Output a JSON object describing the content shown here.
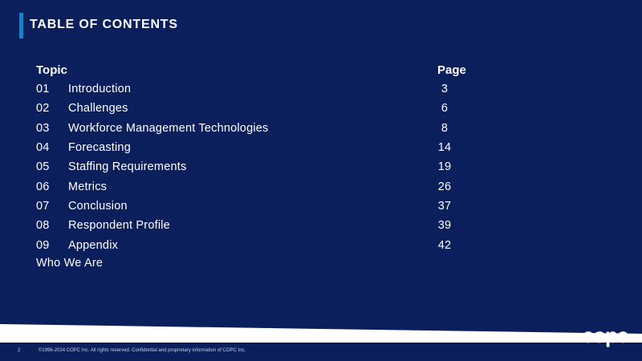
{
  "header": {
    "title": "TABLE OF CONTENTS"
  },
  "toc": {
    "topic_heading": "Topic",
    "page_heading": "Page",
    "items": [
      {
        "num": "01",
        "label": "Introduction",
        "page": "3"
      },
      {
        "num": "02",
        "label": "Challenges",
        "page": "6"
      },
      {
        "num": "03",
        "label": "Workforce Management Technologies",
        "page": "8"
      },
      {
        "num": "04",
        "label": "Forecasting",
        "page": "14"
      },
      {
        "num": "05",
        "label": "Staffing Requirements",
        "page": "19"
      },
      {
        "num": "06",
        "label": "Metrics",
        "page": "26"
      },
      {
        "num": "07",
        "label": "Conclusion",
        "page": "37"
      },
      {
        "num": "08",
        "label": "Respondent Profile",
        "page": "39"
      },
      {
        "num": "09",
        "label": "Appendix",
        "page": "42"
      }
    ],
    "extra": "Who We Are"
  },
  "footer": {
    "slide_number": "2",
    "copyright": "©1996-2024 COPC Inc. All rights reserved. Confidential and proprietary information of COPC Inc.",
    "logo_name": "copc-logo"
  },
  "colors": {
    "background": "#0b1f5c",
    "accent": "#1f7fc4",
    "text": "#ffffff"
  }
}
